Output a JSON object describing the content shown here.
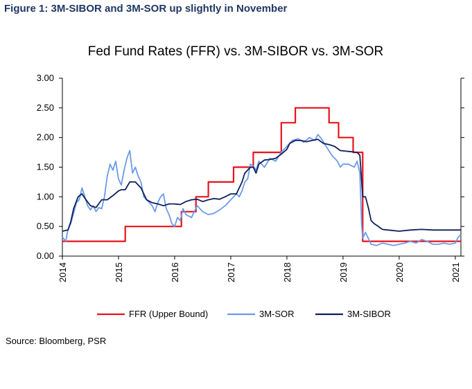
{
  "figure_caption": "Figure 1: 3M-SIBOR and 3M-SOR up slightly in November",
  "source_note": "Source: Bloomberg, PSR",
  "chart_data": {
    "type": "line",
    "title": "Fed Fund Rates (FFR) vs. 3M-SIBOR vs. 3M-SOR",
    "xlabel": "",
    "ylabel": "",
    "xlim": [
      2014.0,
      2021.1
    ],
    "ylim": [
      0.0,
      3.0
    ],
    "x_ticks": [
      "2014",
      "2015",
      "2016",
      "2017",
      "2018",
      "2019",
      "2020",
      "2021"
    ],
    "y_ticks": [
      "0.00",
      "0.50",
      "1.00",
      "1.50",
      "2.00",
      "2.50",
      "3.00"
    ],
    "grid": false,
    "legend_position": "bottom",
    "series": [
      {
        "name": "FFR (Upper Bound)",
        "color": "#e8121c",
        "step": true,
        "points": [
          [
            2014.0,
            0.25
          ],
          [
            2015.12,
            0.25
          ],
          [
            2015.12,
            0.5
          ],
          [
            2016.12,
            0.5
          ],
          [
            2016.12,
            0.75
          ],
          [
            2016.38,
            0.75
          ],
          [
            2016.38,
            1.0
          ],
          [
            2016.6,
            1.0
          ],
          [
            2016.6,
            1.25
          ],
          [
            2017.05,
            1.25
          ],
          [
            2017.05,
            1.5
          ],
          [
            2017.4,
            1.5
          ],
          [
            2017.4,
            1.75
          ],
          [
            2017.9,
            1.75
          ],
          [
            2017.9,
            2.25
          ],
          [
            2018.15,
            2.25
          ],
          [
            2018.15,
            2.5
          ],
          [
            2018.75,
            2.5
          ],
          [
            2018.75,
            2.25
          ],
          [
            2018.92,
            2.25
          ],
          [
            2018.92,
            2.0
          ],
          [
            2019.18,
            2.0
          ],
          [
            2019.18,
            1.75
          ],
          [
            2019.35,
            1.75
          ],
          [
            2019.35,
            0.25
          ],
          [
            2021.1,
            0.25
          ]
        ]
      },
      {
        "name": "3M-SOR",
        "color": "#6c9ae8",
        "step": false,
        "points": [
          [
            2014.0,
            0.32
          ],
          [
            2014.06,
            0.25
          ],
          [
            2014.1,
            0.45
          ],
          [
            2014.15,
            0.55
          ],
          [
            2014.2,
            0.72
          ],
          [
            2014.25,
            0.9
          ],
          [
            2014.3,
            0.95
          ],
          [
            2014.35,
            1.15
          ],
          [
            2014.4,
            1.0
          ],
          [
            2014.45,
            0.85
          ],
          [
            2014.5,
            0.78
          ],
          [
            2014.55,
            0.85
          ],
          [
            2014.6,
            0.75
          ],
          [
            2014.65,
            0.82
          ],
          [
            2014.7,
            0.8
          ],
          [
            2014.75,
            1.0
          ],
          [
            2014.8,
            1.35
          ],
          [
            2014.85,
            1.55
          ],
          [
            2014.9,
            1.45
          ],
          [
            2014.95,
            1.6
          ],
          [
            2015.0,
            1.3
          ],
          [
            2015.05,
            1.2
          ],
          [
            2015.1,
            1.45
          ],
          [
            2015.15,
            1.65
          ],
          [
            2015.2,
            1.78
          ],
          [
            2015.25,
            1.4
          ],
          [
            2015.3,
            1.5
          ],
          [
            2015.35,
            1.35
          ],
          [
            2015.4,
            1.25
          ],
          [
            2015.45,
            1.0
          ],
          [
            2015.5,
            0.95
          ],
          [
            2015.55,
            0.9
          ],
          [
            2015.6,
            0.85
          ],
          [
            2015.65,
            0.75
          ],
          [
            2015.7,
            0.9
          ],
          [
            2015.75,
            1.0
          ],
          [
            2015.8,
            1.05
          ],
          [
            2015.85,
            0.8
          ],
          [
            2015.9,
            0.7
          ],
          [
            2015.95,
            0.55
          ],
          [
            2016.0,
            0.5
          ],
          [
            2016.05,
            0.65
          ],
          [
            2016.1,
            0.6
          ],
          [
            2016.15,
            0.8
          ],
          [
            2016.2,
            0.7
          ],
          [
            2016.3,
            0.65
          ],
          [
            2016.4,
            0.85
          ],
          [
            2016.5,
            0.75
          ],
          [
            2016.6,
            0.7
          ],
          [
            2016.7,
            0.72
          ],
          [
            2016.8,
            0.78
          ],
          [
            2016.9,
            0.85
          ],
          [
            2017.0,
            0.95
          ],
          [
            2017.1,
            1.05
          ],
          [
            2017.15,
            1.0
          ],
          [
            2017.2,
            1.1
          ],
          [
            2017.25,
            1.25
          ],
          [
            2017.3,
            1.3
          ],
          [
            2017.35,
            1.55
          ],
          [
            2017.4,
            1.52
          ],
          [
            2017.45,
            1.45
          ],
          [
            2017.5,
            1.6
          ],
          [
            2017.6,
            1.5
          ],
          [
            2017.7,
            1.65
          ],
          [
            2017.8,
            1.6
          ],
          [
            2017.9,
            1.75
          ],
          [
            2018.0,
            1.85
          ],
          [
            2018.1,
            1.95
          ],
          [
            2018.2,
            1.98
          ],
          [
            2018.3,
            1.92
          ],
          [
            2018.4,
            2.0
          ],
          [
            2018.5,
            1.95
          ],
          [
            2018.55,
            2.05
          ],
          [
            2018.6,
            2.0
          ],
          [
            2018.7,
            1.85
          ],
          [
            2018.8,
            1.7
          ],
          [
            2018.9,
            1.6
          ],
          [
            2018.95,
            1.5
          ],
          [
            2019.0,
            1.55
          ],
          [
            2019.1,
            1.55
          ],
          [
            2019.2,
            1.5
          ],
          [
            2019.25,
            1.6
          ],
          [
            2019.3,
            1.4
          ],
          [
            2019.33,
            0.55
          ],
          [
            2019.35,
            0.3
          ],
          [
            2019.4,
            0.4
          ],
          [
            2019.45,
            0.3
          ],
          [
            2019.5,
            0.2
          ],
          [
            2019.6,
            0.18
          ],
          [
            2019.7,
            0.22
          ],
          [
            2019.8,
            0.2
          ],
          [
            2019.9,
            0.18
          ],
          [
            2020.0,
            0.2
          ],
          [
            2020.1,
            0.22
          ],
          [
            2020.2,
            0.25
          ],
          [
            2020.3,
            0.22
          ],
          [
            2020.4,
            0.28
          ],
          [
            2020.5,
            0.25
          ],
          [
            2020.6,
            0.2
          ],
          [
            2020.7,
            0.2
          ],
          [
            2020.8,
            0.22
          ],
          [
            2020.9,
            0.2
          ],
          [
            2021.0,
            0.22
          ],
          [
            2021.05,
            0.32
          ],
          [
            2021.1,
            0.36
          ]
        ]
      },
      {
        "name": "3M-SIBOR",
        "color": "#0d1f5c",
        "step": false,
        "points": [
          [
            2014.0,
            0.42
          ],
          [
            2014.1,
            0.44
          ],
          [
            2014.15,
            0.58
          ],
          [
            2014.2,
            0.8
          ],
          [
            2014.28,
            1.0
          ],
          [
            2014.35,
            1.05
          ],
          [
            2014.42,
            0.95
          ],
          [
            2014.5,
            0.85
          ],
          [
            2014.6,
            0.82
          ],
          [
            2014.7,
            0.95
          ],
          [
            2014.8,
            0.95
          ],
          [
            2014.9,
            1.02
          ],
          [
            2015.0,
            1.1
          ],
          [
            2015.05,
            1.12
          ],
          [
            2015.12,
            1.12
          ],
          [
            2015.2,
            1.25
          ],
          [
            2015.3,
            1.25
          ],
          [
            2015.4,
            1.15
          ],
          [
            2015.5,
            0.95
          ],
          [
            2015.6,
            0.9
          ],
          [
            2015.7,
            0.88
          ],
          [
            2015.8,
            0.85
          ],
          [
            2015.9,
            0.88
          ],
          [
            2016.0,
            0.88
          ],
          [
            2016.1,
            0.87
          ],
          [
            2016.2,
            0.92
          ],
          [
            2016.3,
            0.95
          ],
          [
            2016.4,
            0.96
          ],
          [
            2016.5,
            0.92
          ],
          [
            2016.6,
            0.95
          ],
          [
            2016.7,
            0.97
          ],
          [
            2016.8,
            0.96
          ],
          [
            2016.9,
            1.0
          ],
          [
            2017.0,
            1.05
          ],
          [
            2017.1,
            1.05
          ],
          [
            2017.2,
            1.25
          ],
          [
            2017.25,
            1.4
          ],
          [
            2017.3,
            1.45
          ],
          [
            2017.35,
            1.5
          ],
          [
            2017.4,
            1.5
          ],
          [
            2017.45,
            1.4
          ],
          [
            2017.5,
            1.55
          ],
          [
            2017.6,
            1.62
          ],
          [
            2017.7,
            1.63
          ],
          [
            2017.8,
            1.65
          ],
          [
            2017.9,
            1.72
          ],
          [
            2018.0,
            1.8
          ],
          [
            2018.05,
            1.9
          ],
          [
            2018.15,
            1.95
          ],
          [
            2018.25,
            1.95
          ],
          [
            2018.35,
            1.93
          ],
          [
            2018.45,
            1.95
          ],
          [
            2018.55,
            1.97
          ],
          [
            2018.65,
            1.9
          ],
          [
            2018.75,
            1.88
          ],
          [
            2018.85,
            1.85
          ],
          [
            2018.95,
            1.78
          ],
          [
            2019.05,
            1.77
          ],
          [
            2019.15,
            1.76
          ],
          [
            2019.25,
            1.75
          ],
          [
            2019.3,
            1.7
          ],
          [
            2019.35,
            1.0
          ],
          [
            2019.4,
            1.0
          ],
          [
            2019.45,
            0.82
          ],
          [
            2019.5,
            0.6
          ],
          [
            2019.55,
            0.55
          ],
          [
            2019.6,
            0.52
          ],
          [
            2019.7,
            0.45
          ],
          [
            2019.8,
            0.44
          ],
          [
            2020.0,
            0.42
          ],
          [
            2020.2,
            0.44
          ],
          [
            2020.4,
            0.45
          ],
          [
            2020.6,
            0.44
          ],
          [
            2020.8,
            0.44
          ],
          [
            2021.0,
            0.44
          ],
          [
            2021.1,
            0.44
          ]
        ]
      }
    ]
  }
}
